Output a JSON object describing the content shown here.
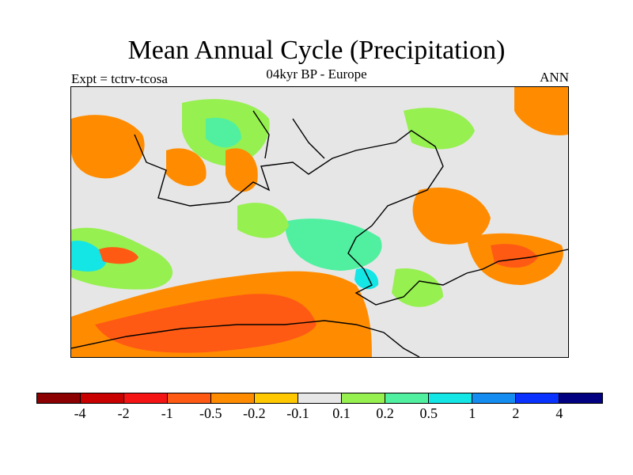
{
  "title": "Mean Annual Cycle (Precipitation)",
  "subtitle": "04kyr BP - Europe",
  "expt_label": "Expt = tctrv-tcosa",
  "season": "ANN",
  "colorbar": {
    "colors": [
      "#8b0000",
      "#c80000",
      "#f51414",
      "#ff5a14",
      "#ff8c00",
      "#ffc800",
      "#e6e6e6",
      "#96f050",
      "#50f0a0",
      "#14e6e6",
      "#148cf0",
      "#0a32ff",
      "#000080"
    ],
    "labels": [
      "-4",
      "-2",
      "-1",
      "-0.5",
      "-0.2",
      "-0.1",
      "0.1",
      "0.2",
      "0.5",
      "1",
      "2",
      "4"
    ]
  },
  "map": {
    "region": "Europe",
    "sea_color": "#e6e6e6",
    "anomaly_colors": {
      "strong_negative": "#ff5a14",
      "negative": "#ff8c00",
      "weak_negative": "#ffc800",
      "weak_positive": "#96f050",
      "positive": "#50f0a0",
      "strong_positive": "#14e6e6"
    }
  }
}
